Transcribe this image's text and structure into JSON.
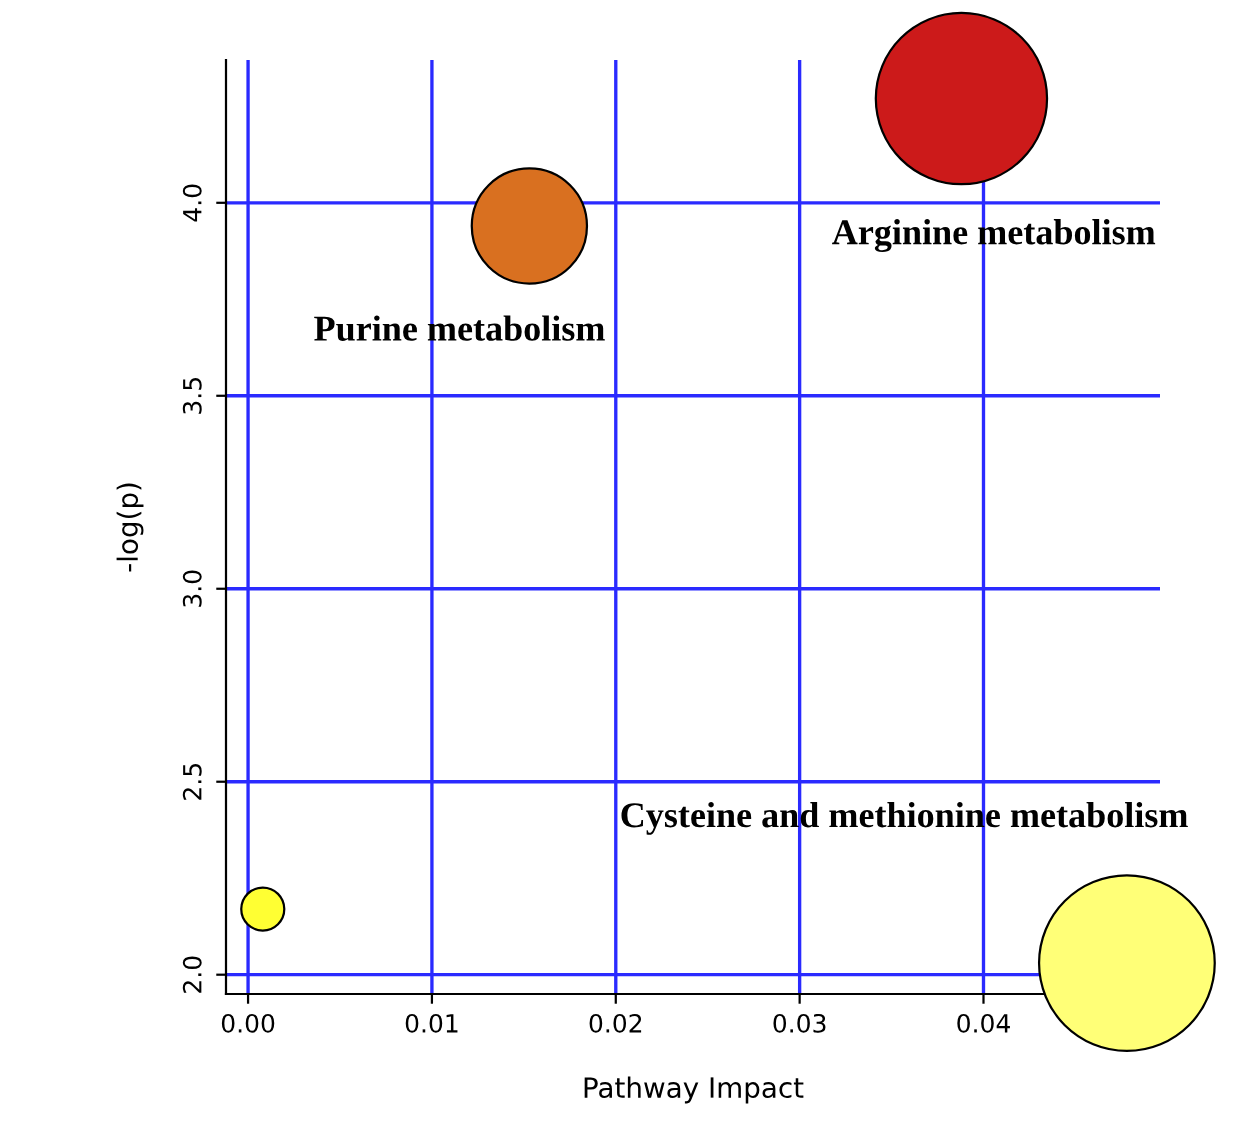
{
  "chart_data": {
    "type": "bubble",
    "xlabel": "Pathway Impact",
    "ylabel": "-log(p)",
    "x": [
      0.0008,
      0.0153,
      0.0388,
      0.0478
    ],
    "values": [
      2.17,
      3.94,
      4.27,
      2.03
    ],
    "sizes": [
      0.06,
      0.43,
      0.95,
      1
    ],
    "colors": [
      "#ffff33",
      "#d97020",
      "#cc1a1a",
      "#ffff77"
    ],
    "xlim": [
      -0.0012,
      0.0496
    ],
    "ylim": [
      1.95,
      4.37
    ],
    "xticks": [
      {
        "value": 0,
        "label": "0.00"
      },
      0.01,
      0.02,
      0.03,
      0.04
    ],
    "yticks": [
      {
        "value": 2,
        "label": "2.0"
      },
      2.5,
      {
        "value": 3,
        "label": "3.0"
      },
      3.5,
      {
        "value": 4,
        "label": "4.0"
      }
    ],
    "grid": true,
    "annotations": [
      "Purine metabolism",
      "Arginine metabolism",
      "Cysteine and methionine metabolism"
    ]
  }
}
